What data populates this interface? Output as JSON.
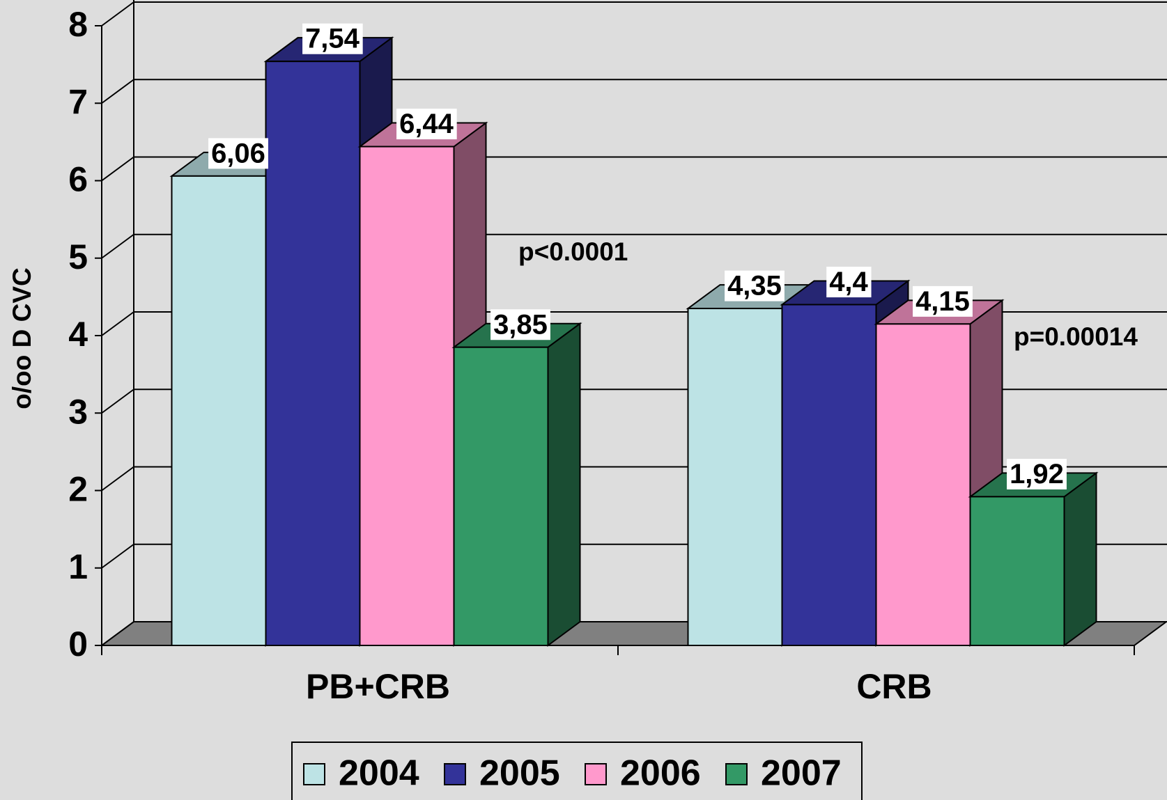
{
  "chart_data": {
    "type": "bar3d",
    "categories": [
      "PB+CRB",
      "CRB"
    ],
    "series": [
      {
        "name": "2004",
        "color": "#bde3e5",
        "values": [
          6.06,
          4.35
        ],
        "value_labels": [
          "6,06",
          "4,35"
        ]
      },
      {
        "name": "2005",
        "color": "#333399",
        "values": [
          7.54,
          4.4
        ],
        "value_labels": [
          "7,54",
          "4,4"
        ]
      },
      {
        "name": "2006",
        "color": "#ff99cc",
        "values": [
          6.44,
          4.15
        ],
        "value_labels": [
          "6,44",
          "4,15"
        ]
      },
      {
        "name": "2007",
        "color": "#339966",
        "values": [
          3.85,
          1.92
        ],
        "value_labels": [
          "3,85",
          "1,92"
        ]
      }
    ],
    "ylabel": "o/oo D CVC",
    "ylim": [
      0,
      8
    ],
    "yticks": [
      0,
      1,
      2,
      3,
      4,
      5,
      6,
      7,
      8
    ],
    "grid": true,
    "annotations": [
      "p<0.0001",
      "p=0.00014"
    ],
    "legend": "bottom"
  }
}
